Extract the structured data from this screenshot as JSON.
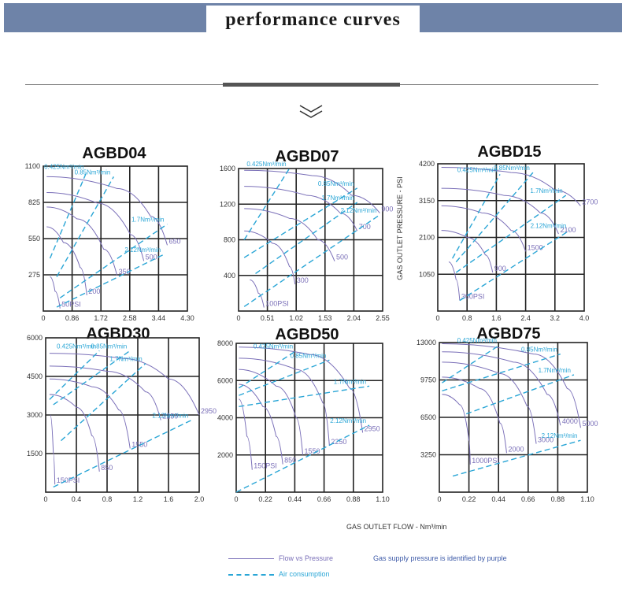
{
  "header": {
    "title": "performance curves"
  },
  "footer": {
    "xlabel": "GAS OUTLET FLOW - Nm³/min",
    "ylabel": "GAS OUTLET PRESSURE - PSI",
    "legend_flow": "Flow vs Pressure",
    "legend_air": "Air consumption",
    "legend_note": "Gas supply pressure is identified by purple"
  },
  "colors": {
    "banner": "#6e83a8",
    "purple": "#7a6fb8",
    "cyan": "#2aa6d6",
    "grid": "#222222",
    "legend_note": "#3d5aa8"
  },
  "chart_data": [
    {
      "type": "line",
      "title": "AGBD04",
      "xticks": [
        "0",
        "0.86",
        "1.72",
        "2.58",
        "3.44",
        "4.30"
      ],
      "yticks": [
        "275",
        "550",
        "825",
        "1100"
      ],
      "xlim": [
        0,
        4.3
      ],
      "ylim": [
        0,
        1100
      ],
      "flow_vs_pressure": [
        {
          "name": "50PSI",
          "points": [
            [
              0.2,
              260
            ],
            [
              0.35,
              150
            ],
            [
              0.5,
              20
            ]
          ]
        },
        {
          "name": "200",
          "points": [
            [
              0.1,
              640
            ],
            [
              0.6,
              520
            ],
            [
              1.1,
              330
            ],
            [
              1.3,
              120
            ]
          ]
        },
        {
          "name": "350",
          "points": [
            [
              0.1,
              790
            ],
            [
              1.0,
              700
            ],
            [
              1.8,
              470
            ],
            [
              2.2,
              270
            ]
          ]
        },
        {
          "name": "500",
          "points": [
            [
              0.1,
              900
            ],
            [
              1.6,
              820
            ],
            [
              2.6,
              580
            ],
            [
              3.0,
              380
            ]
          ]
        },
        {
          "name": "650",
          "points": [
            [
              0.1,
              1020
            ],
            [
              2.2,
              930
            ],
            [
              3.2,
              720
            ],
            [
              3.7,
              500
            ]
          ]
        }
      ],
      "air_consumption": [
        {
          "name": "0.425Nm³/min",
          "points": [
            [
              0.2,
              400
            ],
            [
              1.3,
              1060
            ]
          ]
        },
        {
          "name": "0.85Nm³/min",
          "points": [
            [
              0.4,
              260
            ],
            [
              2.1,
              1020
            ]
          ]
        },
        {
          "name": "1.7Nm³/min",
          "points": [
            [
              0.5,
              100
            ],
            [
              3.7,
              660
            ]
          ]
        },
        {
          "name": "2.12Nm³/min",
          "points": [
            [
              0.4,
              30
            ],
            [
              3.6,
              430
            ]
          ]
        }
      ]
    },
    {
      "type": "line",
      "title": "AGBD07",
      "xticks": [
        "0",
        "0.51",
        "1.02",
        "1.53",
        "2.04",
        "2.55"
      ],
      "yticks": [
        "400",
        "800",
        "1200",
        "1600"
      ],
      "xlim": [
        0,
        2.55
      ],
      "ylim": [
        0,
        1600
      ],
      "flow_vs_pressure": [
        {
          "name": "100PSI",
          "points": [
            [
              0.2,
              350
            ],
            [
              0.35,
              200
            ],
            [
              0.45,
              40
            ]
          ]
        },
        {
          "name": "300",
          "points": [
            [
              0.1,
              900
            ],
            [
              0.6,
              760
            ],
            [
              0.9,
              500
            ],
            [
              1.0,
              300
            ]
          ]
        },
        {
          "name": "500",
          "points": [
            [
              0.1,
              1150
            ],
            [
              0.9,
              1040
            ],
            [
              1.4,
              800
            ],
            [
              1.7,
              560
            ]
          ]
        },
        {
          "name": "700",
          "points": [
            [
              0.1,
              1400
            ],
            [
              1.2,
              1300
            ],
            [
              1.8,
              1100
            ],
            [
              2.1,
              900
            ]
          ]
        },
        {
          "name": "900",
          "points": [
            [
              0.1,
              1580
            ],
            [
              1.3,
              1520
            ],
            [
              2.0,
              1300
            ],
            [
              2.5,
              1100
            ]
          ]
        }
      ],
      "air_consumption": [
        {
          "name": "0.425Nm³/min",
          "points": [
            [
              0.1,
              800
            ],
            [
              0.9,
              1600
            ]
          ]
        },
        {
          "name": "0.85Nm³/min",
          "points": [
            [
              0.1,
              600
            ],
            [
              2.1,
              1380
            ]
          ]
        },
        {
          "name": "1.7Nm³/min",
          "points": [
            [
              0.3,
              420
            ],
            [
              2.1,
              1220
            ]
          ]
        },
        {
          "name": "2.12Nm³/min",
          "points": [
            [
              0.1,
              50
            ],
            [
              2.5,
              1080
            ]
          ]
        }
      ]
    },
    {
      "type": "line",
      "title": "AGBD15",
      "xticks": [
        "0",
        "0.8",
        "1.6",
        "2.4",
        "3.2",
        "4.0"
      ],
      "yticks": [
        "1050",
        "2100",
        "3150",
        "4200"
      ],
      "xlim": [
        0,
        4.0
      ],
      "ylim": [
        0,
        4200
      ],
      "flow_vs_pressure": [
        {
          "name": "300PSI",
          "points": [
            [
              0.3,
              1400
            ],
            [
              0.5,
              900
            ],
            [
              0.6,
              300
            ]
          ]
        },
        {
          "name": "900",
          "points": [
            [
              0.1,
              2300
            ],
            [
              0.8,
              2100
            ],
            [
              1.3,
              1600
            ],
            [
              1.5,
              1100
            ]
          ]
        },
        {
          "name": "1500",
          "points": [
            [
              0.1,
              3000
            ],
            [
              1.2,
              2800
            ],
            [
              2.0,
              2300
            ],
            [
              2.4,
              1700
            ]
          ]
        },
        {
          "name": "2100",
          "points": [
            [
              0.1,
              3500
            ],
            [
              1.8,
              3300
            ],
            [
              2.8,
              2800
            ],
            [
              3.3,
              2200
            ]
          ]
        },
        {
          "name": "2700",
          "points": [
            [
              0.1,
              4100
            ],
            [
              2.0,
              3950
            ],
            [
              3.2,
              3450
            ],
            [
              3.9,
              3000
            ]
          ]
        }
      ],
      "air_consumption": [
        {
          "name": "0.425Nm³/min",
          "points": [
            [
              0.4,
              1500
            ],
            [
              1.7,
              3900
            ]
          ]
        },
        {
          "name": "0.85Nm³/min",
          "points": [
            [
              0.5,
              1400
            ],
            [
              2.6,
              3950
            ]
          ]
        },
        {
          "name": "1.7Nm³/min",
          "points": [
            [
              0.5,
              1100
            ],
            [
              3.5,
              3300
            ]
          ]
        },
        {
          "name": "2.12Nm³/min",
          "points": [
            [
              0.6,
              300
            ],
            [
              3.6,
              2300
            ]
          ]
        }
      ]
    },
    {
      "type": "line",
      "title": "AGBD30",
      "xticks": [
        "0",
        "0.4",
        "0.8",
        "1.2",
        "1.6",
        "2.0"
      ],
      "yticks": [
        "1500",
        "3000",
        "4500",
        "6000"
      ],
      "xlim": [
        0,
        2.0
      ],
      "ylim": [
        0,
        6000
      ],
      "flow_vs_pressure": [
        {
          "name": "150PSI",
          "points": [
            [
              0.06,
              3000
            ],
            [
              0.1,
              1500
            ],
            [
              0.12,
              300
            ]
          ]
        },
        {
          "name": "850",
          "points": [
            [
              0.05,
              3800
            ],
            [
              0.4,
              3300
            ],
            [
              0.6,
              2200
            ],
            [
              0.7,
              800
            ]
          ]
        },
        {
          "name": "1550",
          "points": [
            [
              0.05,
              4400
            ],
            [
              0.6,
              4100
            ],
            [
              0.95,
              3200
            ],
            [
              1.1,
              1700
            ]
          ]
        },
        {
          "name": "2250",
          "points": [
            [
              0.05,
              4900
            ],
            [
              0.8,
              4700
            ],
            [
              1.3,
              3900
            ],
            [
              1.5,
              2800
            ]
          ]
        },
        {
          "name": "2950",
          "points": [
            [
              0.05,
              5400
            ],
            [
              1.0,
              5200
            ],
            [
              1.6,
              4400
            ],
            [
              2.0,
              3000
            ]
          ]
        }
      ],
      "air_consumption": [
        {
          "name": "0.425Nm³/min",
          "points": [
            [
              0.05,
              3600
            ],
            [
              0.7,
              5500
            ]
          ]
        },
        {
          "name": "0.85Nm³/min",
          "points": [
            [
              0.1,
              3400
            ],
            [
              1.1,
              5500
            ]
          ]
        },
        {
          "name": "1.7Nm³/min",
          "points": [
            [
              0.2,
              2000
            ],
            [
              1.3,
              5000
            ]
          ]
        },
        {
          "name": "2.12Nm³/min",
          "points": [
            [
              0.1,
              200
            ],
            [
              1.9,
              2800
            ]
          ]
        }
      ]
    },
    {
      "type": "line",
      "title": "AGBD50",
      "xticks": [
        "0",
        "0.22",
        "0.44",
        "0.66",
        "0.88",
        "1.10"
      ],
      "yticks": [
        "2000",
        "4000",
        "6000",
        "8000"
      ],
      "xlim": [
        0,
        1.1
      ],
      "ylim": [
        0,
        8000
      ],
      "flow_vs_pressure": [
        {
          "name": "150PSI",
          "points": [
            [
              0.02,
              5000
            ],
            [
              0.08,
              3000
            ],
            [
              0.12,
              1200
            ]
          ]
        },
        {
          "name": "850",
          "points": [
            [
              0.02,
              5800
            ],
            [
              0.2,
              4600
            ],
            [
              0.3,
              3000
            ],
            [
              0.35,
              1500
            ]
          ]
        },
        {
          "name": "1550",
          "points": [
            [
              0.02,
              6600
            ],
            [
              0.3,
              5700
            ],
            [
              0.45,
              4000
            ],
            [
              0.5,
              2000
            ]
          ]
        },
        {
          "name": "2250",
          "points": [
            [
              0.02,
              7200
            ],
            [
              0.45,
              6600
            ],
            [
              0.65,
              4800
            ],
            [
              0.7,
              2500
            ]
          ]
        },
        {
          "name": "2950",
          "points": [
            [
              0.02,
              7800
            ],
            [
              0.55,
              7400
            ],
            [
              0.85,
              5600
            ],
            [
              0.95,
              3200
            ]
          ]
        }
      ],
      "air_consumption": [
        {
          "name": "0.425Nm³/min",
          "points": [
            [
              0.02,
              5600
            ],
            [
              0.45,
              7600
            ]
          ]
        },
        {
          "name": "0.85Nm³/min",
          "points": [
            [
              0.02,
              5200
            ],
            [
              0.7,
              7100
            ]
          ]
        },
        {
          "name": "1.7Nm³/min",
          "points": [
            [
              0.02,
              4600
            ],
            [
              1.0,
              5700
            ]
          ]
        },
        {
          "name": "2.12Nm³/min",
          "points": [
            [
              0.0,
              0
            ],
            [
              1.0,
              3600
            ]
          ]
        }
      ]
    },
    {
      "type": "line",
      "title": "AGBD75",
      "xticks": [
        "0",
        "0.22",
        "0.44",
        "0.66",
        "0.88",
        "1.10"
      ],
      "yticks": [
        "3250",
        "6500",
        "9750",
        "13000"
      ],
      "xlim": [
        0,
        1.1
      ],
      "ylim": [
        0,
        13000
      ],
      "flow_vs_pressure": [
        {
          "name": "1000PSI",
          "points": [
            [
              0.02,
              8500
            ],
            [
              0.15,
              7600
            ],
            [
              0.22,
              4500
            ],
            [
              0.23,
              2400
            ]
          ]
        },
        {
          "name": "2000",
          "points": [
            [
              0.02,
              10000
            ],
            [
              0.3,
              9000
            ],
            [
              0.45,
              6000
            ],
            [
              0.5,
              3400
            ]
          ]
        },
        {
          "name": "3000",
          "points": [
            [
              0.02,
              11300
            ],
            [
              0.45,
              10300
            ],
            [
              0.65,
              7500
            ],
            [
              0.72,
              4200
            ]
          ]
        },
        {
          "name": "4000",
          "points": [
            [
              0.02,
              12200
            ],
            [
              0.55,
              11300
            ],
            [
              0.8,
              8500
            ],
            [
              0.9,
              5800
            ]
          ]
        },
        {
          "name": "5000",
          "points": [
            [
              0.02,
              12900
            ],
            [
              0.7,
              12000
            ],
            [
              0.95,
              9000
            ],
            [
              1.05,
              5600
            ]
          ]
        }
      ],
      "air_consumption": [
        {
          "name": "0.425Nm³/min",
          "points": [
            [
              0.02,
              9500
            ],
            [
              0.45,
              12800
            ]
          ]
        },
        {
          "name": "0.85Nm³/min",
          "points": [
            [
              0.02,
              8800
            ],
            [
              0.9,
              12000
            ]
          ]
        },
        {
          "name": "1.7Nm³/min",
          "points": [
            [
              0.2,
              6800
            ],
            [
              1.0,
              10200
            ]
          ]
        },
        {
          "name": "2.12Nm³/min",
          "points": [
            [
              0.1,
              1400
            ],
            [
              1.05,
              4500
            ]
          ]
        }
      ]
    }
  ]
}
